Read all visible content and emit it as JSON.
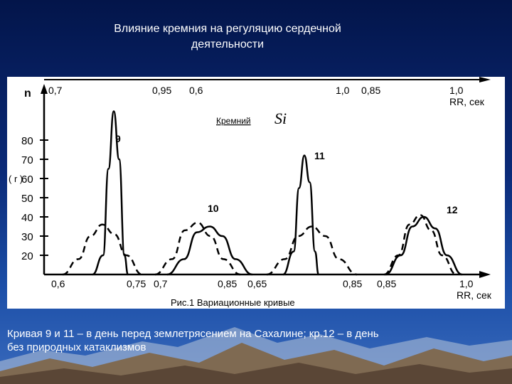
{
  "slide": {
    "title_line1": "Влияние кремния на регуляцию сердечной",
    "title_line2": "деятельности",
    "caption_line1": "Кривая 9 и 11 – в день перед землетрясением на Сахалине; кр.12 – в день",
    "caption_line2": "без природных катаклизмов"
  },
  "chart_data": {
    "type": "line",
    "title": "",
    "figure_caption": "Рис.1 Вариационные кривые",
    "annotation_label": "Кремний",
    "annotation_symbol": "Si",
    "ylabel": "n",
    "ylabel_unit": "( r )",
    "xlabel": "RR, сек",
    "top_xlabel": "RR, сек",
    "y_ticks": [
      20,
      30,
      40,
      50,
      60,
      70,
      80
    ],
    "y_tick_labels": [
      "20",
      "30",
      "40",
      "50",
      "60",
      "70",
      "80"
    ],
    "ylim": [
      10,
      100
    ],
    "bottom_tick_labels": [
      "0,6",
      "0,75",
      "0,7",
      "0,85",
      "0,65",
      "0,85",
      "0,85",
      "1,0"
    ],
    "top_tick_labels": [
      "0,7",
      "0,95",
      "0,6",
      "1,0",
      "0,85",
      "1,0"
    ],
    "axis_color": "#000000",
    "series": [
      {
        "name": "9",
        "style": "solid",
        "x": [
          0.0,
          0.3,
          0.45,
          0.6,
          0.75,
          0.9,
          1.0
        ],
        "y": [
          10,
          20,
          65,
          95,
          70,
          20,
          10
        ]
      },
      {
        "name": "",
        "style": "dashed",
        "x": [
          0.0,
          0.2,
          0.35,
          0.5,
          0.65,
          0.8,
          1.0
        ],
        "y": [
          10,
          18,
          30,
          36,
          31,
          20,
          10
        ]
      },
      {
        "name": "10",
        "style": "solid",
        "x": [
          0.0,
          0.2,
          0.35,
          0.5,
          0.65,
          0.8,
          1.0
        ],
        "y": [
          10,
          18,
          32,
          35,
          30,
          18,
          10
        ]
      },
      {
        "name": "",
        "style": "dashed",
        "x": [
          0.0,
          0.2,
          0.35,
          0.5,
          0.65,
          0.8,
          1.0
        ],
        "y": [
          10,
          18,
          33,
          37,
          30,
          18,
          10
        ]
      },
      {
        "name": "11",
        "style": "solid",
        "x": [
          0.0,
          0.3,
          0.45,
          0.6,
          0.75,
          0.9,
          1.0
        ],
        "y": [
          10,
          22,
          55,
          72,
          58,
          22,
          10
        ]
      },
      {
        "name": "",
        "style": "dashed",
        "x": [
          0.0,
          0.2,
          0.35,
          0.5,
          0.65,
          0.8,
          1.0
        ],
        "y": [
          10,
          18,
          30,
          35,
          30,
          18,
          10
        ]
      },
      {
        "name": "12",
        "style": "solid",
        "x": [
          0.0,
          0.2,
          0.35,
          0.5,
          0.65,
          0.8,
          1.0
        ],
        "y": [
          10,
          20,
          35,
          40,
          34,
          20,
          10
        ]
      },
      {
        "name": "",
        "style": "dashed",
        "x": [
          0.0,
          0.2,
          0.35,
          0.5,
          0.65,
          0.8,
          1.0
        ],
        "y": [
          10,
          20,
          36,
          41,
          33,
          20,
          10
        ]
      }
    ]
  }
}
